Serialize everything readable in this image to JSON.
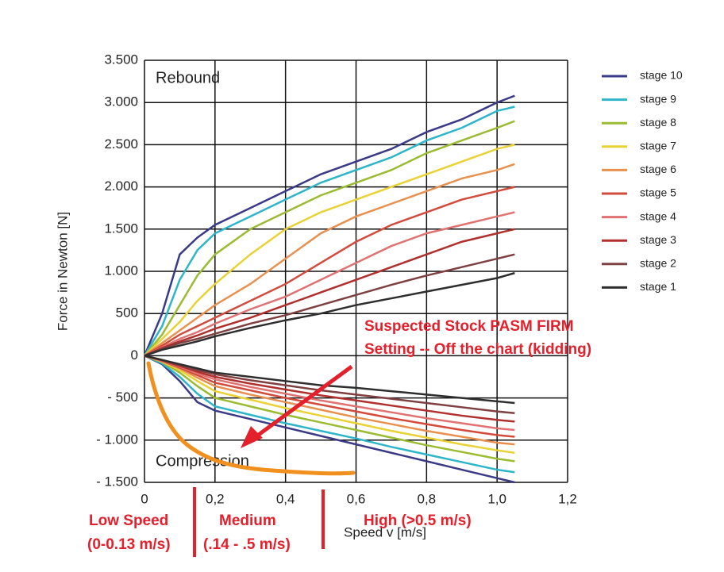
{
  "chart_data": {
    "type": "line",
    "y_label": "Force in Newton [N]",
    "x_label": "Speed v [m/s]",
    "annotations": {
      "rebound": "Rebound",
      "compression": "Compression",
      "suspected_1": "Suspected Stock PASM FIRM",
      "suspected_2": "Setting -- Off the chart (kidding)",
      "low": "Low Speed",
      "low_range": "(0-0.13 m/s)",
      "medium": "Medium",
      "medium_range": "(.14 - .5 m/s)",
      "high": "High (>0.5 m/s)"
    },
    "x": [
      0,
      0.05,
      0.1,
      0.15,
      0.2,
      0.3,
      0.4,
      0.5,
      0.6,
      0.7,
      0.8,
      0.9,
      1.0,
      1.05
    ],
    "series": [
      {
        "name": "stage 10",
        "color": "#3b3a86",
        "values": [
          0,
          500,
          1200,
          1400,
          1550,
          1750,
          1950,
          2150,
          2300,
          2450,
          2650,
          2800,
          3000,
          3080
        ],
        "compression_values": [
          0,
          -100,
          -300,
          -550,
          -650,
          -750,
          -850,
          -950,
          -1050,
          -1150,
          -1250,
          -1350,
          -1450,
          -1500
        ]
      },
      {
        "name": "stage 9",
        "color": "#2fb5c9",
        "values": [
          0,
          350,
          900,
          1250,
          1450,
          1650,
          1850,
          2050,
          2200,
          2350,
          2550,
          2700,
          2900,
          2950
        ],
        "compression_values": [
          0,
          -90,
          -250,
          -450,
          -600,
          -700,
          -800,
          -890,
          -980,
          -1080,
          -1170,
          -1260,
          -1350,
          -1380
        ]
      },
      {
        "name": "stage 8",
        "color": "#9bbb32",
        "values": [
          0,
          250,
          600,
          950,
          1200,
          1500,
          1700,
          1900,
          2050,
          2200,
          2400,
          2550,
          2700,
          2780
        ],
        "compression_values": [
          0,
          -75,
          -200,
          -360,
          -500,
          -600,
          -700,
          -790,
          -880,
          -970,
          -1060,
          -1140,
          -1220,
          -1250
        ]
      },
      {
        "name": "stage 7",
        "color": "#e9d235",
        "values": [
          0,
          200,
          400,
          650,
          850,
          1200,
          1500,
          1700,
          1850,
          2000,
          2150,
          2300,
          2450,
          2500
        ],
        "compression_values": [
          0,
          -70,
          -170,
          -300,
          -420,
          -520,
          -620,
          -710,
          -800,
          -890,
          -970,
          -1050,
          -1120,
          -1150
        ]
      },
      {
        "name": "stage 6",
        "color": "#e8904f",
        "values": [
          0,
          150,
          300,
          450,
          600,
          850,
          1150,
          1450,
          1650,
          1800,
          1950,
          2100,
          2200,
          2270
        ],
        "compression_values": [
          0,
          -65,
          -150,
          -260,
          -360,
          -460,
          -550,
          -640,
          -730,
          -810,
          -890,
          -960,
          -1030,
          -1050
        ]
      },
      {
        "name": "stage 5",
        "color": "#d24b3c",
        "values": [
          0,
          120,
          250,
          350,
          450,
          650,
          850,
          1100,
          1350,
          1550,
          1700,
          1850,
          1950,
          2000
        ],
        "compression_values": [
          0,
          -60,
          -140,
          -230,
          -320,
          -410,
          -500,
          -580,
          -660,
          -740,
          -810,
          -880,
          -940,
          -960
        ]
      },
      {
        "name": "stage 4",
        "color": "#e07272",
        "values": [
          0,
          100,
          200,
          280,
          380,
          550,
          700,
          900,
          1100,
          1300,
          1450,
          1550,
          1650,
          1700
        ],
        "compression_values": [
          0,
          -60,
          -130,
          -210,
          -280,
          -370,
          -450,
          -530,
          -600,
          -670,
          -740,
          -800,
          -860,
          -880
        ]
      },
      {
        "name": "stage 3",
        "color": "#b0302e",
        "values": [
          0,
          90,
          170,
          240,
          320,
          450,
          600,
          750,
          900,
          1050,
          1200,
          1350,
          1450,
          1500
        ],
        "compression_values": [
          0,
          -55,
          -120,
          -190,
          -250,
          -330,
          -400,
          -470,
          -530,
          -590,
          -650,
          -710,
          -760,
          -780
        ]
      },
      {
        "name": "stage 2",
        "color": "#7e4040",
        "values": [
          0,
          80,
          150,
          200,
          260,
          380,
          480,
          600,
          720,
          840,
          950,
          1050,
          1150,
          1200
        ],
        "compression_values": [
          0,
          -50,
          -110,
          -170,
          -220,
          -290,
          -350,
          -410,
          -460,
          -510,
          -560,
          -610,
          -660,
          -680
        ]
      },
      {
        "name": "stage 1",
        "color": "#2e2e2e",
        "values": [
          0,
          70,
          120,
          170,
          230,
          330,
          420,
          500,
          600,
          680,
          760,
          840,
          920,
          980
        ],
        "compression_values": [
          0,
          -50,
          -100,
          -150,
          -200,
          -250,
          -300,
          -350,
          -380,
          -420,
          -460,
          -500,
          -540,
          -560
        ]
      }
    ],
    "xlim": [
      0,
      1.2
    ],
    "xticks": [
      0,
      {
        "value": 0.2,
        "label": "0,2"
      },
      {
        "value": 0.4,
        "label": "0,4"
      },
      {
        "value": 0.6,
        "label": "0,6"
      },
      {
        "value": 0.8,
        "label": "0,8"
      },
      {
        "value": 1.0,
        "label": "1,0"
      },
      {
        "value": 1.2,
        "label": "1,2"
      }
    ],
    "ylim": [
      -1500,
      3500
    ],
    "yticks": [
      {
        "value": 3500,
        "label": "3.500"
      },
      {
        "value": 3000,
        "label": "3.000"
      },
      {
        "value": 2500,
        "label": "2.500"
      },
      {
        "value": 2000,
        "label": "2.000"
      },
      {
        "value": 1500,
        "label": "1.500"
      },
      {
        "value": 1000,
        "label": "1.000"
      },
      500,
      0,
      {
        "value": -500,
        "label": "- 500"
      },
      {
        "value": -1000,
        "label": "- 1.000"
      },
      {
        "value": -1500,
        "label": "- 1.500"
      }
    ],
    "grid": true,
    "legend": "right"
  }
}
